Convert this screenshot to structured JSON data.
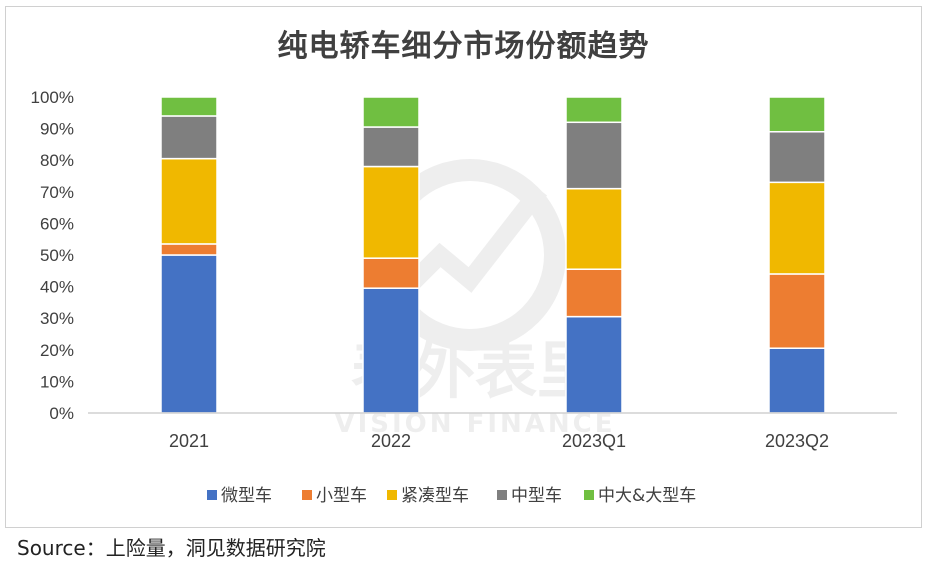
{
  "chart_data": {
    "type": "bar",
    "stacked": true,
    "title": "纯电轿车细分市场份额趋势",
    "categories": [
      "2021",
      "2022",
      "2023Q1",
      "2023Q2"
    ],
    "series": [
      {
        "name": "微型车",
        "color": "#4472C4",
        "values": [
          50.0,
          39.5,
          30.5,
          20.5
        ]
      },
      {
        "name": "小型车",
        "color": "#ED7D31",
        "values": [
          3.5,
          9.5,
          15.0,
          23.5
        ]
      },
      {
        "name": "紧凑型车",
        "color": "#F0B800",
        "values": [
          27.0,
          29.0,
          25.5,
          29.0
        ]
      },
      {
        "name": "中型车",
        "color": "#7F7F7F",
        "values": [
          13.5,
          12.5,
          21.0,
          16.0
        ]
      },
      {
        "name": "中大&大型车",
        "color": "#70BF41",
        "values": [
          6.0,
          9.5,
          8.0,
          11.0
        ]
      }
    ],
    "y_ticks": [
      "0%",
      "10%",
      "20%",
      "30%",
      "40%",
      "50%",
      "60%",
      "70%",
      "80%",
      "90%",
      "100%"
    ],
    "ylim": [
      0,
      100
    ],
    "grid": false,
    "legend_position": "bottom"
  },
  "watermark": {
    "main": "表外表里",
    "sub": "VISION FINANCE"
  },
  "source": "Source：上险量，洞见数据研究院"
}
